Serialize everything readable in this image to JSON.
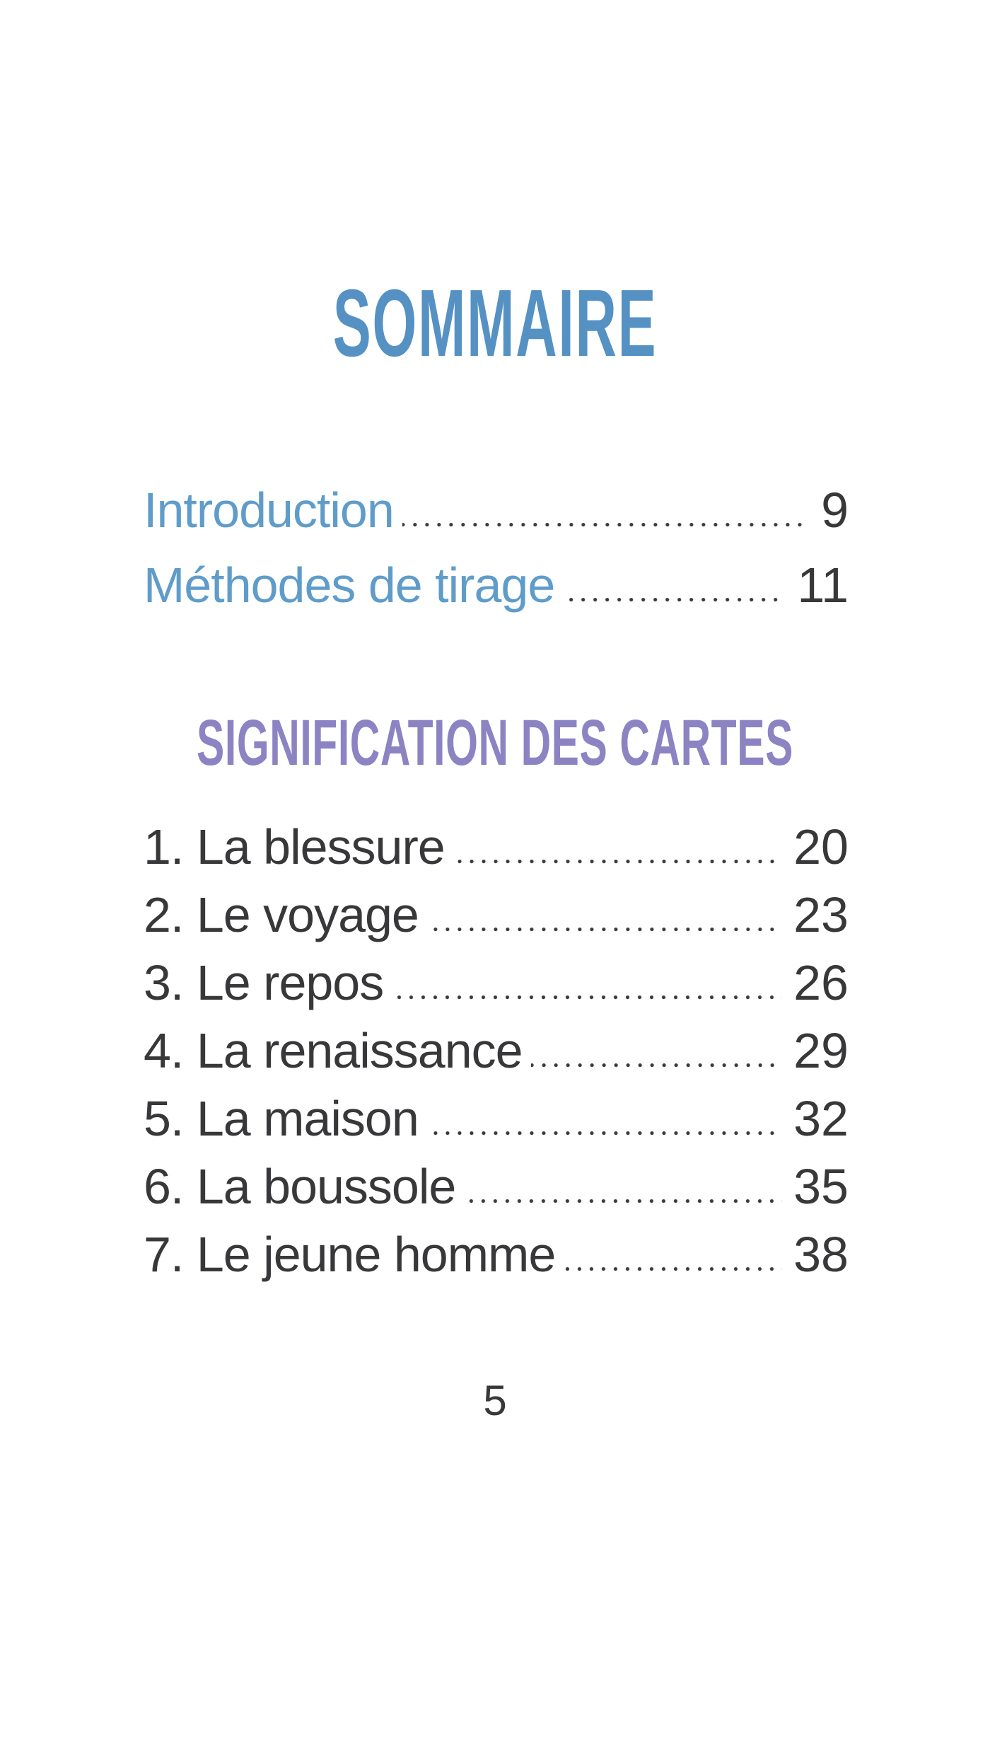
{
  "page": {
    "title": "SOMMAIRE",
    "section_heading": "SIGNIFICATION DES CARTES",
    "page_number": "5",
    "colors": {
      "title_blue": "#5591c3",
      "entry_blue": "#5f9cca",
      "heading_purple": "#8c83c3",
      "text_dark": "#38383a",
      "background": "#ffffff"
    },
    "front_entries": [
      {
        "label": "Introduction",
        "page": "9"
      },
      {
        "label": "Méthodes de tirage",
        "page": "11"
      }
    ],
    "card_entries": [
      {
        "label": "1. La blessure",
        "page": "20"
      },
      {
        "label": "2. Le voyage",
        "page": "23"
      },
      {
        "label": "3. Le repos",
        "page": "26"
      },
      {
        "label": "4. La renaissance",
        "page": "29"
      },
      {
        "label": "5. La maison",
        "page": "32"
      },
      {
        "label": "6. La boussole",
        "page": "35"
      },
      {
        "label": "7. Le jeune homme",
        "page": "38"
      }
    ]
  }
}
